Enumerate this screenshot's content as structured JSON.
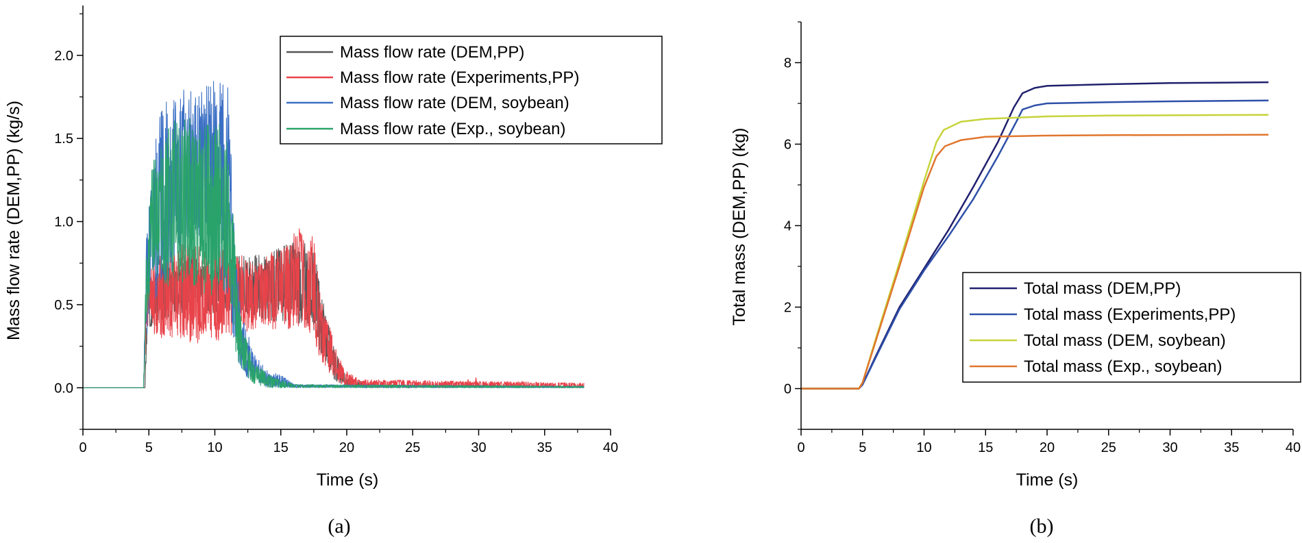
{
  "chart_data": [
    {
      "type": "line",
      "panel": "(a)",
      "xlabel": "Time (s)",
      "ylabel": "Mass flow rate (DEM,PP) (kg/s)",
      "xlim": [
        0,
        40
      ],
      "ylim": [
        -0.25,
        2.3
      ],
      "xticks": [
        0,
        5,
        10,
        15,
        20,
        25,
        30,
        35,
        40
      ],
      "yticks": [
        0.0,
        0.5,
        1.0,
        1.5,
        2.0
      ],
      "ytick_labels": [
        "0.0",
        "0.5",
        "1.0",
        "1.5",
        "2.0"
      ],
      "legend_position": "top-right",
      "series": [
        {
          "name": "Mass flow rate (DEM,PP)",
          "color": "#555555",
          "envelope": [
            [
              0,
              0,
              0
            ],
            [
              4.7,
              0,
              0
            ],
            [
              4.9,
              0.35,
              0.6
            ],
            [
              6,
              0.4,
              0.75
            ],
            [
              8,
              0.45,
              0.8
            ],
            [
              10,
              0.45,
              0.75
            ],
            [
              12,
              0.45,
              0.8
            ],
            [
              14,
              0.4,
              0.8
            ],
            [
              16,
              0.4,
              0.9
            ],
            [
              17.5,
              0.35,
              0.85
            ],
            [
              18,
              0.2,
              0.6
            ],
            [
              19,
              0.05,
              0.25
            ],
            [
              20,
              0.0,
              0.06
            ],
            [
              22,
              0,
              0.02
            ],
            [
              38,
              0,
              0.01
            ]
          ]
        },
        {
          "name": "Mass flow rate (Experiments,PP)",
          "color": "#e8434a",
          "envelope": [
            [
              0,
              0,
              0
            ],
            [
              4.6,
              0,
              0
            ],
            [
              4.8,
              0.3,
              0.6
            ],
            [
              5,
              0.3,
              0.75
            ],
            [
              7,
              0.3,
              0.85
            ],
            [
              9,
              0.25,
              0.9
            ],
            [
              11,
              0.3,
              0.85
            ],
            [
              13,
              0.35,
              0.75
            ],
            [
              15,
              0.35,
              0.85
            ],
            [
              16.5,
              0.35,
              1.0
            ],
            [
              17.5,
              0.3,
              0.9
            ],
            [
              18,
              0.15,
              0.55
            ],
            [
              19,
              0.05,
              0.3
            ],
            [
              20,
              0.0,
              0.1
            ],
            [
              21,
              0,
              0.05
            ],
            [
              38,
              0,
              0.03
            ]
          ],
          "spikes": [
            [
              25.8,
              0.03
            ],
            [
              27.5,
              0.04
            ],
            [
              29.2,
              0.05
            ],
            [
              29.8,
              0.06
            ],
            [
              33.3,
              0.04
            ],
            [
              36.5,
              0.03
            ],
            [
              37.3,
              0.02
            ]
          ]
        },
        {
          "name": "Mass flow rate (DEM, soybean)",
          "color": "#3b6fc4",
          "envelope": [
            [
              0,
              0,
              0
            ],
            [
              4.6,
              0,
              0
            ],
            [
              4.8,
              0.3,
              0.9
            ],
            [
              5.5,
              0.5,
              1.5
            ],
            [
              6,
              0.6,
              1.7
            ],
            [
              7.5,
              0.8,
              1.8
            ],
            [
              9,
              0.9,
              1.8
            ],
            [
              10,
              0.7,
              1.85
            ],
            [
              11,
              0.5,
              1.85
            ],
            [
              11.5,
              0.25,
              0.9
            ],
            [
              12,
              0.1,
              0.45
            ],
            [
              13,
              0.02,
              0.2
            ],
            [
              14,
              0.0,
              0.1
            ],
            [
              15,
              0,
              0.08
            ],
            [
              16,
              0,
              0.02
            ],
            [
              38,
              0,
              0.01
            ]
          ]
        },
        {
          "name": "Mass flow rate (Exp., soybean)",
          "color": "#2aa36b",
          "envelope": [
            [
              0,
              0,
              0
            ],
            [
              4.6,
              0,
              0
            ],
            [
              4.8,
              0.4,
              0.9
            ],
            [
              5.3,
              0.7,
              1.4
            ],
            [
              6.5,
              0.6,
              1.6
            ],
            [
              8,
              0.65,
              1.65
            ],
            [
              9.5,
              0.5,
              1.6
            ],
            [
              10.5,
              0.6,
              1.6
            ],
            [
              11.2,
              0.45,
              1.4
            ],
            [
              11.6,
              0.2,
              0.8
            ],
            [
              12,
              0.1,
              0.4
            ],
            [
              13,
              0.02,
              0.15
            ],
            [
              14,
              0.0,
              0.08
            ],
            [
              15,
              0,
              0.05
            ],
            [
              16,
              0,
              0.02
            ],
            [
              38,
              0,
              0.01
            ]
          ]
        }
      ]
    },
    {
      "type": "line",
      "panel": "(b)",
      "xlabel": "Time (s)",
      "ylabel": "Total mass (DEM,PP) (kg)",
      "xlim": [
        0,
        40
      ],
      "ylim": [
        -1,
        9
      ],
      "xticks": [
        0,
        5,
        10,
        15,
        20,
        25,
        30,
        35,
        40
      ],
      "yticks": [
        0,
        2,
        4,
        6,
        8
      ],
      "ytick_labels": [
        "0",
        "2",
        "4",
        "6",
        "8"
      ],
      "legend_position": "bottom-right",
      "series": [
        {
          "name": "Total mass (DEM,PP)",
          "color": "#20206e",
          "points": [
            [
              0,
              0
            ],
            [
              4.7,
              0
            ],
            [
              5,
              0.1
            ],
            [
              6,
              0.75
            ],
            [
              8,
              2.0
            ],
            [
              10,
              2.95
            ],
            [
              12,
              3.9
            ],
            [
              14,
              4.95
            ],
            [
              16,
              6.05
            ],
            [
              17.3,
              6.9
            ],
            [
              18,
              7.25
            ],
            [
              19,
              7.38
            ],
            [
              20,
              7.43
            ],
            [
              25,
              7.47
            ],
            [
              30,
              7.5
            ],
            [
              38,
              7.52
            ]
          ]
        },
        {
          "name": "Total mass (Experiments,PP)",
          "color": "#2d4fa8",
          "points": [
            [
              0,
              0
            ],
            [
              4.7,
              0
            ],
            [
              5,
              0.1
            ],
            [
              6,
              0.72
            ],
            [
              8,
              1.95
            ],
            [
              10,
              2.9
            ],
            [
              12,
              3.75
            ],
            [
              14,
              4.65
            ],
            [
              16,
              5.7
            ],
            [
              17.5,
              6.55
            ],
            [
              18,
              6.85
            ],
            [
              19,
              6.95
            ],
            [
              20,
              7.0
            ],
            [
              25,
              7.03
            ],
            [
              30,
              7.05
            ],
            [
              38,
              7.07
            ]
          ]
        },
        {
          "name": "Total mass (DEM, soybean)",
          "color": "#c6d43a",
          "points": [
            [
              0,
              0
            ],
            [
              4.7,
              0
            ],
            [
              5,
              0.15
            ],
            [
              6,
              1.15
            ],
            [
              8,
              3.1
            ],
            [
              10,
              5.1
            ],
            [
              11,
              6.05
            ],
            [
              11.6,
              6.35
            ],
            [
              13,
              6.55
            ],
            [
              15,
              6.62
            ],
            [
              20,
              6.68
            ],
            [
              25,
              6.7
            ],
            [
              38,
              6.72
            ]
          ]
        },
        {
          "name": "Total mass (Exp., soybean)",
          "color": "#e0762e",
          "points": [
            [
              0,
              0
            ],
            [
              4.7,
              0
            ],
            [
              5,
              0.15
            ],
            [
              6,
              1.1
            ],
            [
              8,
              3.0
            ],
            [
              10,
              4.95
            ],
            [
              11,
              5.7
            ],
            [
              11.7,
              5.95
            ],
            [
              13,
              6.1
            ],
            [
              15,
              6.18
            ],
            [
              20,
              6.21
            ],
            [
              25,
              6.22
            ],
            [
              38,
              6.23
            ]
          ]
        }
      ]
    }
  ],
  "captions": {
    "a": "(a)",
    "b": "(b)"
  }
}
